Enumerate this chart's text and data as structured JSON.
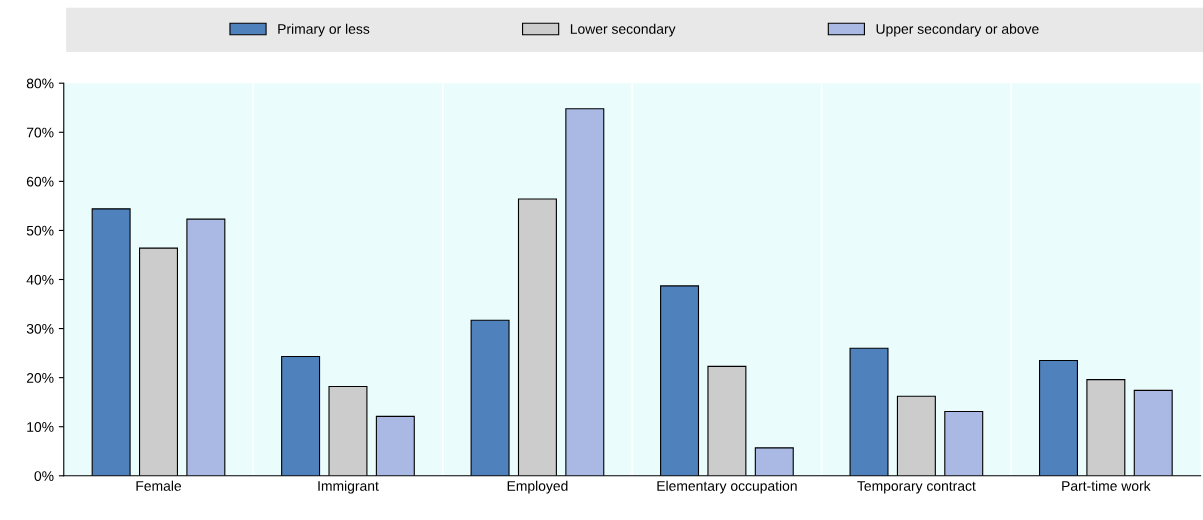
{
  "chart_data": {
    "type": "bar",
    "categories": [
      "Female",
      "Immigrant",
      "Employed",
      "Elementary occupation",
      "Temporary contract",
      "Part-time work"
    ],
    "series": [
      {
        "name": "Primary or less",
        "color": "#4f81bd",
        "values": [
          54.4,
          24.3,
          31.7,
          38.7,
          26.0,
          23.5
        ]
      },
      {
        "name": "Lower secondary",
        "color": "#cccccc",
        "values": [
          46.4,
          18.2,
          56.4,
          22.3,
          16.2,
          19.6
        ]
      },
      {
        "name": "Upper secondary or above",
        "color": "#a9b9e3",
        "values": [
          52.3,
          12.1,
          74.8,
          5.7,
          13.1,
          17.4
        ]
      }
    ],
    "ylim": [
      0,
      80
    ],
    "yticks": [
      {
        "value": 0,
        "label": "0%"
      },
      {
        "value": 10,
        "label": "10%"
      },
      {
        "value": 20,
        "label": "20%"
      },
      {
        "value": 30,
        "label": "30%"
      },
      {
        "value": 40,
        "label": "40%"
      },
      {
        "value": 50,
        "label": "50%"
      },
      {
        "value": 60,
        "label": "60%"
      },
      {
        "value": 70,
        "label": "70%"
      },
      {
        "value": 80,
        "label": "80%"
      }
    ],
    "grid": false,
    "legend": "top"
  }
}
